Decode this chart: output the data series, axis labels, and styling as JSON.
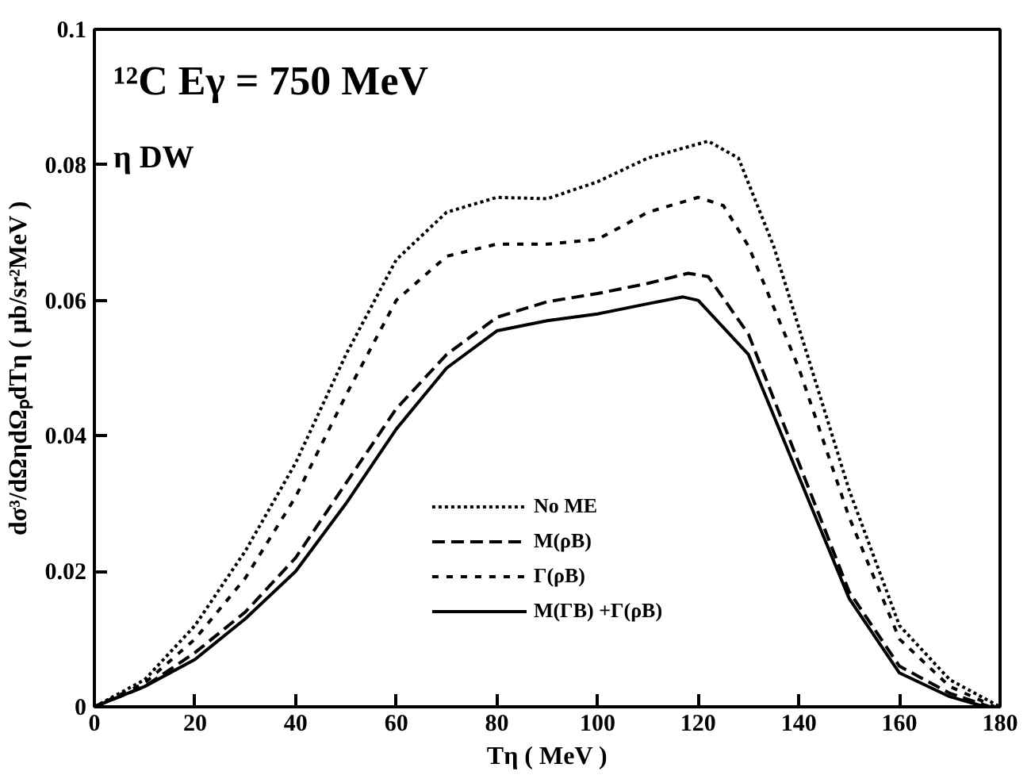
{
  "chart_data": {
    "type": "line",
    "xlabel": "Tη ( MeV )",
    "ylabel": "dσ³/dΩηdΩₚdTη ( μb/sr²MeV )",
    "annotations": [
      "¹²C  Eγ = 750 MeV",
      "η DW"
    ],
    "xlim": [
      0,
      180
    ],
    "ylim": [
      0,
      0.1
    ],
    "xticks": [
      0,
      20,
      40,
      60,
      80,
      100,
      120,
      140,
      160,
      180
    ],
    "yticks": [
      0,
      0.02,
      0.04,
      0.06,
      0.08,
      0.1
    ],
    "grid": false,
    "legend": "bottom",
    "marker": "none",
    "series": [
      {
        "name": "No ME",
        "color": "#000000",
        "line_style": "dotted",
        "x": [
          0,
          10,
          20,
          30,
          40,
          50,
          60,
          70,
          80,
          90,
          100,
          110,
          122,
          128,
          135,
          140,
          150,
          160,
          170,
          180
        ],
        "values": [
          0,
          0.004,
          0.012,
          0.023,
          0.036,
          0.052,
          0.066,
          0.073,
          0.0752,
          0.075,
          0.0775,
          0.081,
          0.0835,
          0.081,
          0.068,
          0.056,
          0.032,
          0.012,
          0.004,
          0
        ]
      },
      {
        "name": "M(ρB)",
        "color": "#000000",
        "line_style": "dashed",
        "x": [
          0,
          10,
          20,
          30,
          40,
          50,
          60,
          70,
          80,
          90,
          100,
          110,
          118,
          122,
          130,
          140,
          150,
          160,
          170,
          178
        ],
        "values": [
          0,
          0.003,
          0.008,
          0.014,
          0.022,
          0.033,
          0.044,
          0.052,
          0.0575,
          0.0598,
          0.061,
          0.0625,
          0.064,
          0.0635,
          0.055,
          0.036,
          0.017,
          0.006,
          0.002,
          0
        ]
      },
      {
        "name": "Γ(ρB)",
        "color": "#000000",
        "line_style": "dashed2",
        "x": [
          0,
          10,
          20,
          30,
          40,
          50,
          60,
          70,
          80,
          90,
          100,
          110,
          120,
          125,
          130,
          140,
          150,
          160,
          170,
          179
        ],
        "values": [
          0,
          0.0035,
          0.01,
          0.019,
          0.031,
          0.046,
          0.06,
          0.0665,
          0.0683,
          0.0683,
          0.069,
          0.073,
          0.0752,
          0.074,
          0.068,
          0.05,
          0.028,
          0.01,
          0.003,
          0
        ]
      },
      {
        "name": "M(ΓB) +Γ(ρB)",
        "color": "#000000",
        "line_style": "solid",
        "x": [
          0,
          10,
          20,
          30,
          40,
          50,
          60,
          70,
          80,
          90,
          100,
          110,
          117,
          120,
          130,
          140,
          150,
          160,
          170,
          177
        ],
        "values": [
          0,
          0.003,
          0.007,
          0.013,
          0.02,
          0.03,
          0.041,
          0.05,
          0.0555,
          0.057,
          0.058,
          0.0595,
          0.0605,
          0.06,
          0.052,
          0.034,
          0.016,
          0.005,
          0.0015,
          0
        ]
      }
    ]
  }
}
